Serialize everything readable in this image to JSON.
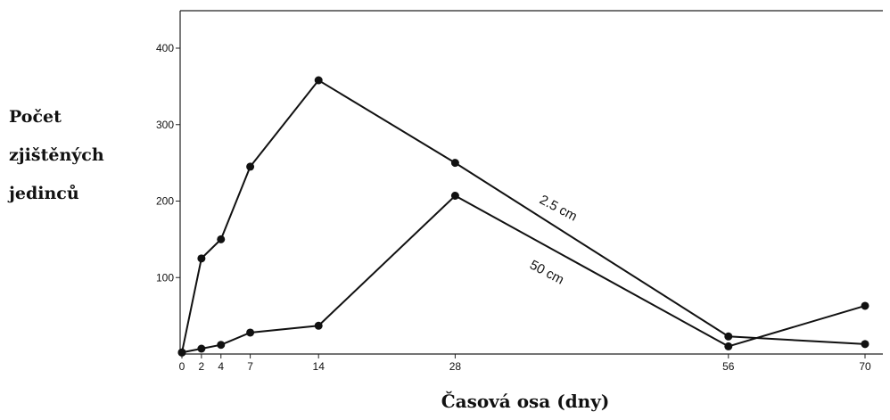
{
  "chart_data": {
    "type": "line",
    "ylabel_lines": [
      "Počet",
      "zjištěných",
      "jedinců"
    ],
    "xlabel": "Časová osa (dny)",
    "xlim": [
      0,
      70
    ],
    "ylim": [
      0,
      450
    ],
    "x_ticks": [
      0,
      2,
      4,
      7,
      14,
      28,
      56,
      70
    ],
    "y_ticks": [
      100,
      200,
      300,
      400
    ],
    "grid": false,
    "series": [
      {
        "name": "2.5 cm",
        "x": [
          0,
          2,
          4,
          7,
          14,
          28,
          56,
          70
        ],
        "values": [
          2,
          125,
          150,
          245,
          358,
          250,
          23,
          13
        ]
      },
      {
        "name": "50 cm",
        "x": [
          0,
          2,
          4,
          7,
          14,
          28,
          56,
          70
        ],
        "values": [
          2,
          7,
          12,
          28,
          37,
          207,
          10,
          63
        ]
      }
    ]
  }
}
